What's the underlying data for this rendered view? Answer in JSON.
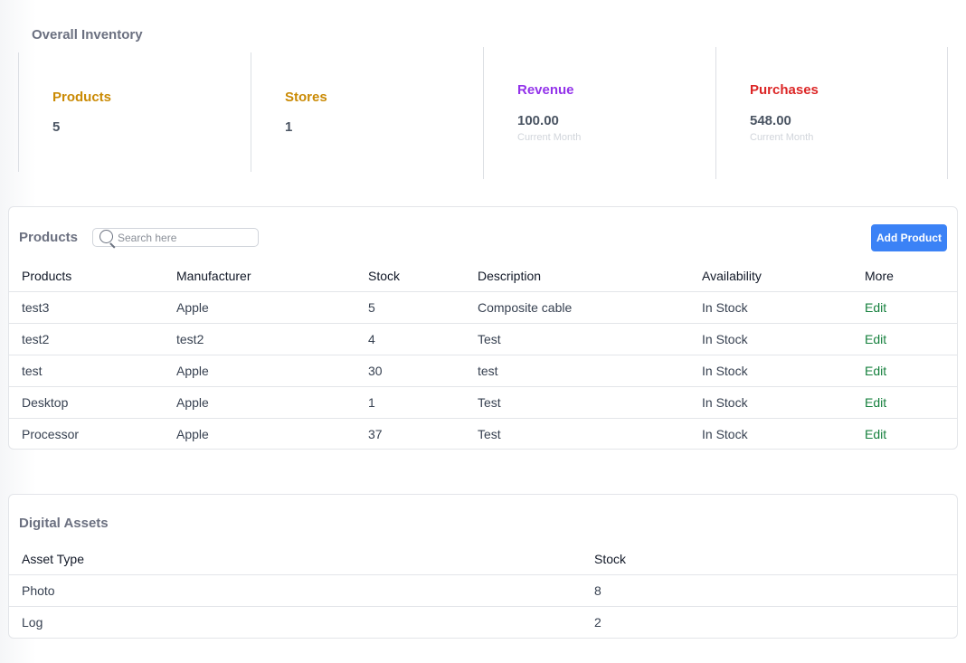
{
  "overall": {
    "title": "Overall Inventory",
    "stats": [
      {
        "label": "Products",
        "value": "5",
        "color": "#ca8a04"
      },
      {
        "label": "Stores",
        "value": "1",
        "color": "#ca8a04"
      },
      {
        "label": "Revenue",
        "value": "100.00",
        "sub": "Current Month",
        "color": "#9333ea"
      },
      {
        "label": "Purchases",
        "value": "548.00",
        "sub": "Current Month",
        "color": "#dc2626"
      }
    ]
  },
  "products": {
    "title": "Products",
    "search_placeholder": "Search here",
    "add_label": "Add Product",
    "columns": [
      "Products",
      "Manufacturer",
      "Stock",
      "Description",
      "Availability",
      "More"
    ],
    "rows": [
      {
        "name": "test3",
        "manufacturer": "Apple",
        "stock": "5",
        "description": "Composite cable",
        "availability": "In Stock",
        "action": "Edit"
      },
      {
        "name": "test2",
        "manufacturer": "test2",
        "stock": "4",
        "description": "Test",
        "availability": "In Stock",
        "action": "Edit"
      },
      {
        "name": "test",
        "manufacturer": "Apple",
        "stock": "30",
        "description": "test",
        "availability": "In Stock",
        "action": "Edit"
      },
      {
        "name": "Desktop",
        "manufacturer": "Apple",
        "stock": "1",
        "description": "Test",
        "availability": "In Stock",
        "action": "Edit"
      },
      {
        "name": "Processor",
        "manufacturer": "Apple",
        "stock": "37",
        "description": "Test",
        "availability": "In Stock",
        "action": "Edit"
      }
    ]
  },
  "assets": {
    "title": "Digital Assets",
    "columns": [
      "Asset Type",
      "Stock"
    ],
    "rows": [
      {
        "type": "Photo",
        "stock": "8"
      },
      {
        "type": "Log",
        "stock": "2"
      }
    ]
  }
}
